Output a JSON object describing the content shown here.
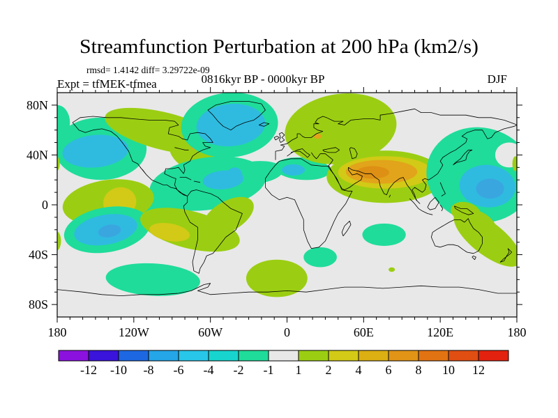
{
  "title": "Streamfunction Perturbation at 200 hPa (km2/s)",
  "header": {
    "stats": "rmsd= 1.4142 diff= 3.29722e-09",
    "experiment": "Expt = tfMEK-tfmea",
    "period": "0816kyr BP - 0000kyr BP",
    "season": "DJF"
  },
  "axes": {
    "lat_labels": [
      "80N",
      "40N",
      "0",
      "40S",
      "80S"
    ],
    "lat_values": [
      80,
      40,
      0,
      -40,
      -80
    ],
    "lon_labels": [
      "180",
      "120W",
      "60W",
      "0",
      "60E",
      "120E",
      "180"
    ],
    "lon_values": [
      -180,
      -120,
      -60,
      0,
      60,
      120,
      180
    ],
    "minor_tick_step_deg": 10
  },
  "colorbar": {
    "tick_labels": [
      "-12",
      "-10",
      "-8",
      "-6",
      "-4",
      "-2",
      "-1",
      "1",
      "2",
      "4",
      "6",
      "8",
      "10",
      "12"
    ],
    "cell_colors": [
      "#8b12de",
      "#3a14da",
      "#1d68e2",
      "#24a6e8",
      "#28c6e8",
      "#18d4ce",
      "#1fdc9a",
      "#e8e8e8",
      "#9bce12",
      "#d2ca16",
      "#dcaf12",
      "#e29416",
      "#e27312",
      "#e04e12",
      "#e2220e"
    ]
  },
  "chart_data": {
    "type": "heatmap",
    "title": "Streamfunction Perturbation at 200 hPa (km2/s)",
    "units": "km2/s",
    "season": "DJF",
    "experiment": "tfMEK-tfmea",
    "comparison": "0816kyr BP - 0000kyr BP",
    "rmsd": 1.4142,
    "diff": 3.29722e-09,
    "projection": "equirectangular",
    "lon_range": [
      -180,
      180
    ],
    "lat_range": [
      -90,
      90
    ],
    "contour_levels": [
      -12,
      -10,
      -8,
      -6,
      -4,
      -2,
      -1,
      1,
      2,
      4,
      6,
      8,
      10,
      12
    ],
    "neutral_color": "#e8e8e8",
    "legend_position": "bottom",
    "grid": false,
    "anomalies": [
      {
        "name": "npacific-neg",
        "level": "-2 to -1",
        "color": "#1fdc9a",
        "lon": -146,
        "lat": 45,
        "rlon": 36,
        "rlat": 25,
        "rot": 0
      },
      {
        "name": "npacific-neg-core",
        "level": "-4 to -2",
        "color": "#2fbbe0",
        "lon": -150,
        "lat": 43,
        "rlon": 26,
        "rlat": 13,
        "rot": -5
      },
      {
        "name": "nw-edge-neg",
        "level": "-2 to -1",
        "color": "#1fdc9a",
        "lon": -180,
        "lat": 66,
        "rlon": 10,
        "rlat": 14,
        "rot": 0
      },
      {
        "name": "canada-pos-band",
        "level": "1 to 2",
        "color": "#9bce12",
        "lon": -96,
        "lat": 59,
        "rlon": 48,
        "rlat": 15,
        "rot": 14
      },
      {
        "name": "east-us-pos",
        "level": "1 to 2",
        "color": "#9bce12",
        "lon": -67,
        "lat": 41,
        "rlon": 26,
        "rlat": 16,
        "rot": 18
      },
      {
        "name": "new-england-pos-spot",
        "level": "4 to 6",
        "color": "#e2a41a",
        "lon": -72,
        "lat": 46,
        "rlon": 3,
        "rlat": 2,
        "rot": 0
      },
      {
        "name": "natlantic-neg",
        "level": "-2 to -1",
        "color": "#1fdc9a",
        "lon": -45,
        "lat": 64,
        "rlon": 38,
        "rlat": 26,
        "rot": -5
      },
      {
        "name": "natlantic-neg-core",
        "level": "-4 to -2",
        "color": "#2fbbe0",
        "lon": -44,
        "lat": 64,
        "rlon": 27,
        "rlat": 17,
        "rot": -5
      },
      {
        "name": "caribbean-neg",
        "level": "-2 to -1",
        "color": "#1fdc9a",
        "lon": -62,
        "lat": 17,
        "rlon": 46,
        "rlat": 21,
        "rot": -8
      },
      {
        "name": "epac-equator-neg",
        "level": "-2 to -1",
        "color": "#1fdc9a",
        "lon": -100,
        "lat": 0,
        "rlon": 14,
        "rlat": 11,
        "rot": -20
      },
      {
        "name": "atlantic-neg-bridge",
        "level": "-2 to -1",
        "color": "#1fdc9a",
        "lon": -25,
        "lat": 26,
        "rlon": 22,
        "rlat": 9,
        "rot": -5
      },
      {
        "name": "caribbean-neg-core",
        "level": "-4 to -2",
        "color": "#2fbbe0",
        "lon": -50,
        "lat": 20,
        "rlon": 16,
        "rlat": 7.5,
        "rot": -5
      },
      {
        "name": "atlantic-neg-core",
        "level": "-4 to -2",
        "color": "#2fbbe0",
        "lon": -41,
        "lat": 24,
        "rlon": 6,
        "rlat": 6,
        "rot": 0
      },
      {
        "name": "nafrica-neg",
        "level": "-2 to -1",
        "color": "#1fdc9a",
        "lon": 12,
        "lat": 29,
        "rlon": 22,
        "rlat": 9,
        "rot": 4
      },
      {
        "name": "nafrica-neg-core",
        "level": "-4 to -2",
        "color": "#2fbbe0",
        "lon": 5,
        "lat": 28,
        "rlon": 9,
        "rlat": 4.5,
        "rot": 0
      },
      {
        "name": "europe-pos",
        "level": "1 to 2",
        "color": "#9bce12",
        "lon": 42,
        "lat": 61,
        "rlon": 44,
        "rlat": 28,
        "rot": -8
      },
      {
        "name": "baltic-pos-spot",
        "level": "4 to 6",
        "color": "#e2a41a",
        "lon": 24,
        "lat": 55,
        "rlon": 3,
        "rlat": 2,
        "rot": 0
      },
      {
        "name": "sasia-pos",
        "level": "1 to 2",
        "color": "#9bce12",
        "lon": 77,
        "lat": 22.5,
        "rlon": 46,
        "rlat": 21,
        "rot": 0
      },
      {
        "name": "sasia-pos-2",
        "level": "2 to 4",
        "color": "#d2ca16",
        "lon": 77,
        "lat": 26,
        "rlon": 37,
        "rlat": 13,
        "rot": 0
      },
      {
        "name": "sasia-pos-3",
        "level": "4 to 6",
        "color": "#e2a41a",
        "lon": 74,
        "lat": 26.5,
        "rlon": 28,
        "rlat": 9.5,
        "rot": 0
      },
      {
        "name": "sasia-pos-core",
        "level": "6 to 8",
        "color": "#dd9014",
        "lon": 67,
        "lat": 26,
        "rlon": 13,
        "rlat": 5,
        "rot": 0
      },
      {
        "name": "nwpacific-neg",
        "level": "-2 to -1",
        "color": "#1fdc9a",
        "lon": 151,
        "lat": 24,
        "rlon": 42,
        "rlat": 38,
        "rot": 12
      },
      {
        "name": "nwpacific-neutral-hole",
        "level": "-1 to 1",
        "color": "#e8e8e8",
        "lon": 174,
        "lat": 40,
        "rlon": 11,
        "rlat": 10,
        "rot": 0
      },
      {
        "name": "dateline-pos-sliver-e",
        "level": "1 to 2",
        "color": "#9bce12",
        "lon": 179,
        "lat": 33,
        "rlon": 2.5,
        "rlat": 6,
        "rot": 0
      },
      {
        "name": "nwpacific-neg-core",
        "level": "-4 to -2",
        "color": "#2fbbe0",
        "lon": 157,
        "lat": 15,
        "rlon": 22,
        "rlat": 17,
        "rot": 5
      },
      {
        "name": "nwpacific-neg-core2",
        "level": "-6 to -4",
        "color": "#3aa6e0",
        "lon": 159,
        "lat": 13,
        "rlon": 11,
        "rlat": 8,
        "rot": 0
      },
      {
        "name": "dateline-pos-sliver-w",
        "level": "1 to 2",
        "color": "#9bce12",
        "lon": -180,
        "lat": 33,
        "rlon": 2,
        "rlat": 5.5,
        "rot": 0
      },
      {
        "name": "epacific-pos",
        "level": "1 to 2",
        "color": "#9bce12",
        "lon": -140,
        "lat": 2,
        "rlon": 36,
        "rlat": 18,
        "rot": -8
      },
      {
        "name": "epacific-pos-core",
        "level": "2 to 4",
        "color": "#d2ca16",
        "lon": -131,
        "lat": 2,
        "rlon": 13,
        "rlat": 12,
        "rot": -15
      },
      {
        "name": "wedge-pos-left",
        "level": "1 to 2",
        "color": "#9bce12",
        "lon": -181,
        "lat": -29,
        "rlon": 4,
        "rlat": 8,
        "rot": 0
      },
      {
        "name": "spacific-neg",
        "level": "-2 to -1",
        "color": "#1fdc9a",
        "lon": -141,
        "lat": -20,
        "rlon": 34,
        "rlat": 18,
        "rot": -10
      },
      {
        "name": "spacific-neg-core",
        "level": "-4 to -2",
        "color": "#2fbbe0",
        "lon": -142,
        "lat": -20,
        "rlon": 25,
        "rlat": 12,
        "rot": -10
      },
      {
        "name": "spacific-neg-core2",
        "level": "-6 to -4",
        "color": "#3aa6e0",
        "lon": -139,
        "lat": -21,
        "rlon": 9,
        "rlat": 5,
        "rot": -10
      },
      {
        "name": "samerica-pos",
        "level": "1 to 2",
        "color": "#9bce12",
        "lon": -76,
        "lat": -20,
        "rlon": 40,
        "rlat": 15,
        "rot": 14
      },
      {
        "name": "samerica-pos-ne",
        "level": "1 to 2",
        "color": "#9bce12",
        "lon": -46,
        "lat": -9,
        "rlon": 22,
        "rlat": 12,
        "rot": -30
      },
      {
        "name": "samerica-pos-core",
        "level": "2 to 4",
        "color": "#d2ca16",
        "lon": -92,
        "lat": -22,
        "rlon": 16,
        "rlat": 7,
        "rot": 10
      },
      {
        "name": "socean-neg",
        "level": "-2 to -1",
        "color": "#1fdc9a",
        "lon": -105,
        "lat": -60,
        "rlon": 37,
        "rlat": 13,
        "rot": 3
      },
      {
        "name": "satlantic-pos",
        "level": "1 to 2",
        "color": "#9bce12",
        "lon": -8,
        "lat": -59,
        "rlon": 24,
        "rlat": 15,
        "rot": 0
      },
      {
        "name": "indian-neg",
        "level": "-2 to -1",
        "color": "#1fdc9a",
        "lon": 76,
        "lat": -24,
        "rlon": 17,
        "rlat": 9,
        "rot": 0
      },
      {
        "name": "safrica-neg",
        "level": "-2 to -1",
        "color": "#1fdc9a",
        "lon": 26,
        "lat": -42,
        "rlon": 13,
        "rlat": 8,
        "rot": 0
      },
      {
        "name": "newguinea-pos",
        "level": "1 to 2",
        "color": "#9bce12",
        "lon": 140,
        "lat": -6,
        "rlon": 12,
        "rlat": 8,
        "rot": 15
      },
      {
        "name": "australia-pos",
        "level": "1 to 2",
        "color": "#9bce12",
        "lon": 150,
        "lat": -17,
        "rlon": 17,
        "rlat": 11,
        "rot": 35
      },
      {
        "name": "australia-nz-pos",
        "level": "1 to 2",
        "color": "#9bce12",
        "lon": 157,
        "lat": -27,
        "rlon": 32,
        "rlat": 13,
        "rot": 38
      },
      {
        "name": "sindian-pos-speck",
        "level": "1 to 2",
        "color": "#9bce12",
        "lon": 82,
        "lat": -52,
        "rlon": 2.5,
        "rlat": 1.8,
        "rot": 0
      }
    ]
  }
}
